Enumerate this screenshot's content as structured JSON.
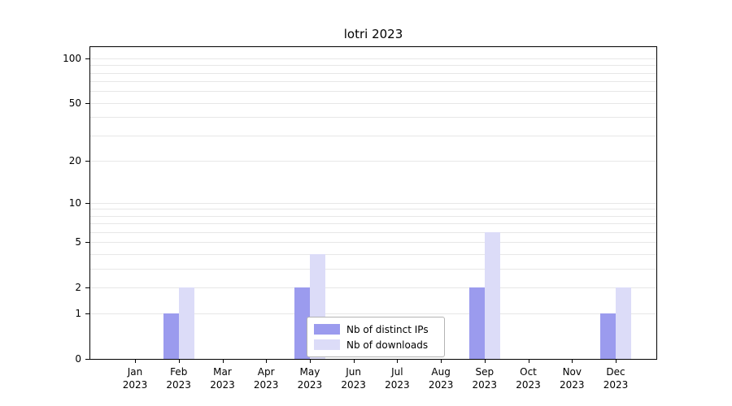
{
  "chart_data": {
    "type": "bar",
    "title": "lotri 2023",
    "categories": [
      {
        "month": "Jan",
        "year": "2023"
      },
      {
        "month": "Feb",
        "year": "2023"
      },
      {
        "month": "Mar",
        "year": "2023"
      },
      {
        "month": "Apr",
        "year": "2023"
      },
      {
        "month": "May",
        "year": "2023"
      },
      {
        "month": "Jun",
        "year": "2023"
      },
      {
        "month": "Jul",
        "year": "2023"
      },
      {
        "month": "Aug",
        "year": "2023"
      },
      {
        "month": "Sep",
        "year": "2023"
      },
      {
        "month": "Oct",
        "year": "2023"
      },
      {
        "month": "Nov",
        "year": "2023"
      },
      {
        "month": "Dec",
        "year": "2023"
      }
    ],
    "series": [
      {
        "name": "Nb of distinct IPs",
        "color": "#9b9bee",
        "values": [
          0,
          1,
          0,
          0,
          2,
          0,
          0,
          0,
          2,
          0,
          0,
          1
        ]
      },
      {
        "name": "Nb of downloads",
        "color": "#dcdcf8",
        "values": [
          0,
          2,
          0,
          0,
          4,
          0,
          0,
          0,
          6,
          0,
          0,
          2
        ]
      }
    ],
    "y_axis": {
      "scale": "log1p",
      "ticks": [
        0,
        1,
        2,
        5,
        10,
        20,
        50,
        100
      ],
      "ylim": [
        0,
        100
      ],
      "gridlines": [
        1,
        2,
        3,
        4,
        5,
        6,
        7,
        8,
        9,
        10,
        20,
        30,
        40,
        50,
        60,
        70,
        80,
        90,
        100
      ]
    },
    "xlabel": "",
    "ylabel": "",
    "legend_position": "lower center",
    "grid": "horizontal"
  }
}
